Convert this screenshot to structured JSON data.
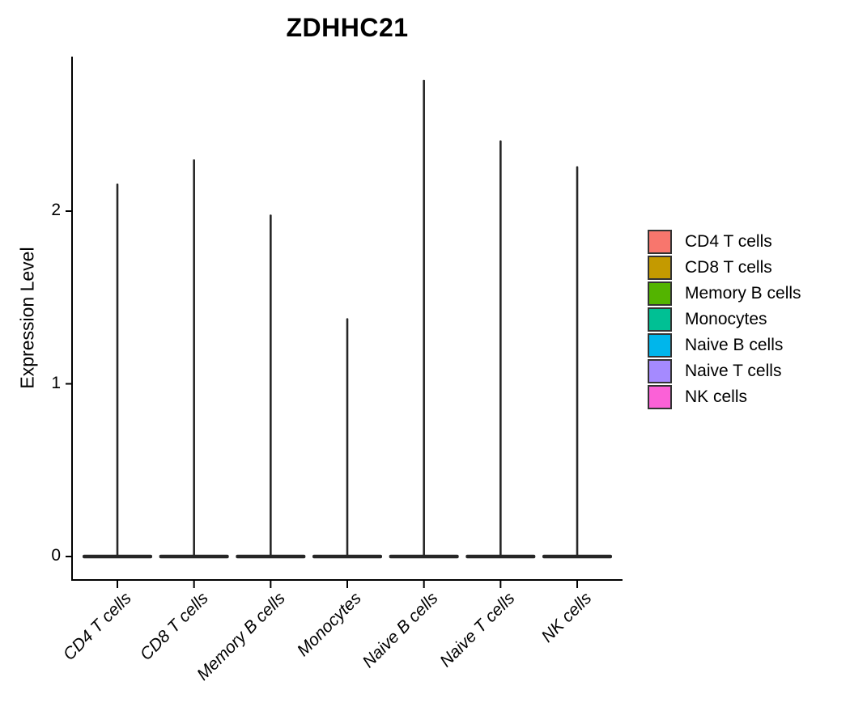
{
  "page": {
    "background": "#ffffff"
  },
  "chart_data": {
    "type": "violin",
    "title": "ZDHHC21",
    "xlabel": "",
    "ylabel": "Expression Level",
    "categories": [
      "CD4 T cells",
      "CD8 T cells",
      "Memory B cells",
      "Monocytes",
      "Naive B cells",
      "Naive T cells",
      "NK cells"
    ],
    "series": [
      {
        "name": "ZDHHC21 expression max (spike top of each violin)",
        "values": [
          2.16,
          2.3,
          1.98,
          1.38,
          2.76,
          2.41,
          2.26
        ]
      }
    ],
    "baseline": 0,
    "ylim": [
      0,
      2.9
    ],
    "yticks": [
      0,
      1,
      2
    ],
    "grid": false,
    "legend_position": "right-middle",
    "legend_items": [
      {
        "label": "CD4 T cells",
        "color": "#F8766D"
      },
      {
        "label": "CD8 T cells",
        "color": "#C49A00"
      },
      {
        "label": "Memory B cells",
        "color": "#53B400"
      },
      {
        "label": "Monocytes",
        "color": "#00C094"
      },
      {
        "label": "Naive B cells",
        "color": "#00B6EB"
      },
      {
        "label": "Naive T cells",
        "color": "#A58AFF"
      },
      {
        "label": "NK cells",
        "color": "#FB61D7"
      }
    ],
    "violin_color": "#262626",
    "axis_color": "#000000",
    "shape_note": "Each violin is collapsed to a flat horizontal bar at 0 with a thin vertical spike reaching its maximum expression value"
  }
}
